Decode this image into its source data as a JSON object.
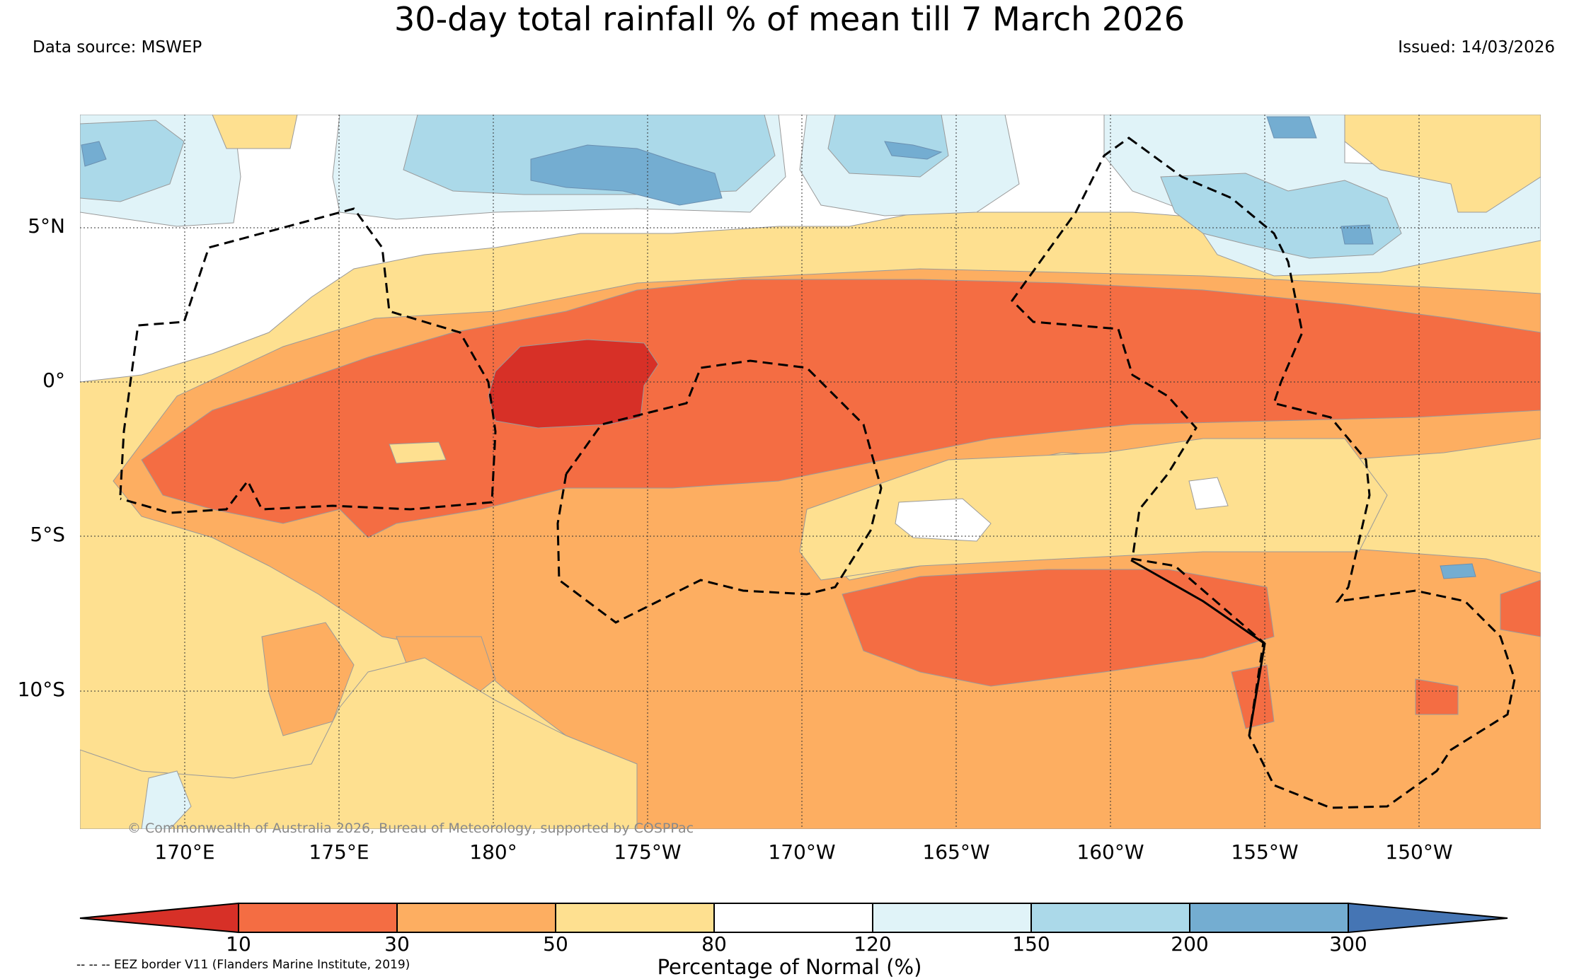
{
  "header": {
    "title": "30-day total rainfall % of mean till 7 March 2026",
    "source": "Data source: MSWEP",
    "issued": "Issued: 14/03/2026"
  },
  "map": {
    "credit": "© Commonwealth of Australia 2026, Bureau of Meteorology, supported by COSPPac",
    "lat_labels": [
      "5°N",
      "0°",
      "5°S",
      "10°S"
    ],
    "lon_labels": [
      "170°E",
      "175°E",
      "180°",
      "175°W",
      "170°W",
      "165°W",
      "160°W",
      "155°W",
      "150°W"
    ],
    "colors": {
      "lt10": "#d73027",
      "c10_30": "#f46d43",
      "c30_50": "#fdae61",
      "c50_80": "#fee090",
      "c80_120": "#ffffff",
      "c120_150": "#e0f3f8",
      "c150_200": "#abd9e9",
      "c200_300": "#74add1",
      "gt300": "#4575b4"
    }
  },
  "colorbar": {
    "ticks": [
      "10",
      "30",
      "50",
      "80",
      "120",
      "150",
      "200",
      "300"
    ],
    "title": "Percentage of Normal (%)",
    "legend_note": "-- -- -- EEZ border V11 (Flanders Marine Institute, 2019)"
  }
}
